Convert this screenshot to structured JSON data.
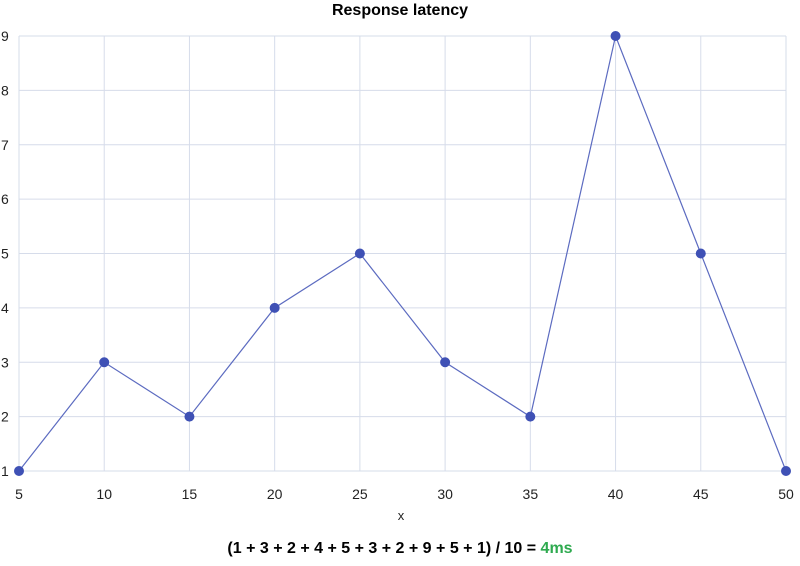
{
  "chart_data": {
    "type": "line",
    "title": "Response latency",
    "xlabel": "x",
    "ylabel": "",
    "x": [
      5,
      10,
      15,
      20,
      25,
      30,
      35,
      40,
      45,
      50
    ],
    "series": [
      {
        "values": [
          1,
          3,
          2,
          4,
          5,
          3,
          2,
          9,
          5,
          1
        ]
      }
    ],
    "xlim": [
      5,
      50
    ],
    "ylim": [
      1,
      9
    ],
    "x_ticks": [
      5,
      10,
      15,
      20,
      25,
      30,
      35,
      40,
      45,
      50
    ],
    "y_ticks": [
      1,
      2,
      3,
      4,
      5,
      6,
      7,
      8,
      9
    ],
    "grid": true,
    "legend": "none"
  },
  "formula": {
    "expression": "(1 + 3 + 2 + 4 + 5 + 3 + 2 + 9 + 5 + 1) / 10 = ",
    "result": "4ms"
  },
  "colors": {
    "line": "#5c6bc0",
    "point": "#3f51b5",
    "grid": "#d6dcea",
    "result": "#2eaa4f"
  }
}
